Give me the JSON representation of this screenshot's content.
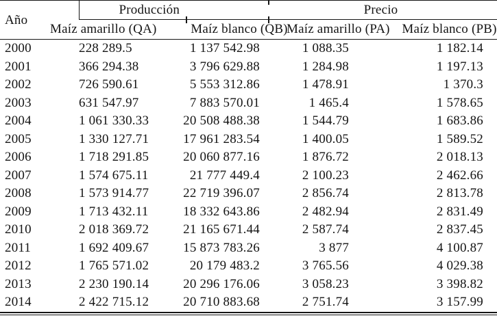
{
  "chart_data": {
    "type": "table",
    "title": "",
    "column_groups": [
      {
        "label": "Producción",
        "span": 2
      },
      {
        "label": "Precio",
        "span": 2
      }
    ],
    "columns": [
      "Año",
      "Maíz amarillo (QA)",
      "Maíz blanco (QB)",
      "Maíz amarillo (PA)",
      "Maíz blanco (PB)"
    ],
    "rows": [
      [
        "2000",
        "228 289.5",
        "1 137 542.98",
        "1 088.35",
        "1 182.14"
      ],
      [
        "2001",
        "366 294.38",
        "3 796 629.88",
        "1 284.98",
        "1 197.13"
      ],
      [
        "2002",
        "726 590.61",
        "5 553 312.86",
        "1 478.91",
        "1 370.3"
      ],
      [
        "2003",
        "631 547.97",
        "7 883 570.01",
        "1 465.4",
        "1 578.65"
      ],
      [
        "2004",
        "1 061 330.33",
        "20 508 488.38",
        "1 544.79",
        "1 683.86"
      ],
      [
        "2005",
        "1 330 127.71",
        "17 961 283.54",
        "1 400.05",
        "1 589.52"
      ],
      [
        "2006",
        "1 718 291.85",
        "20 060 877.16",
        "1 876.72",
        "2 018.13"
      ],
      [
        "2007",
        "1 574 675.11",
        "21 777 449.4",
        "2 100.23",
        "2 462.66"
      ],
      [
        "2008",
        "1 573 914.77",
        "22 719 396.07",
        "2 856.74",
        "2 813.78"
      ],
      [
        "2009",
        "1 713 432.11",
        "18 332 643.86",
        "2 482.94",
        "2 831.49"
      ],
      [
        "2010",
        "2 018 369.72",
        "21 165 671.44",
        "2 587.74",
        "2 837.45"
      ],
      [
        "2011",
        "1 692 409.67",
        "15 873 783.26",
        "3 877",
        "4 100.87"
      ],
      [
        "2012",
        "1 765 571.02",
        "20 179 483.2",
        "3 765.56",
        "4 029.38"
      ],
      [
        "2013",
        "2 230 190.14",
        "20 296 176.06",
        "3 058.23",
        "3 398.82"
      ],
      [
        "2014",
        "2 422 715.12",
        "20 710 883.68",
        "2 751.74",
        "3 157.99"
      ]
    ],
    "layout": {
      "grid": "horizontal-rules-only",
      "text_color": "#141414",
      "rule_color": "#151515",
      "background": "#ffffff"
    }
  }
}
